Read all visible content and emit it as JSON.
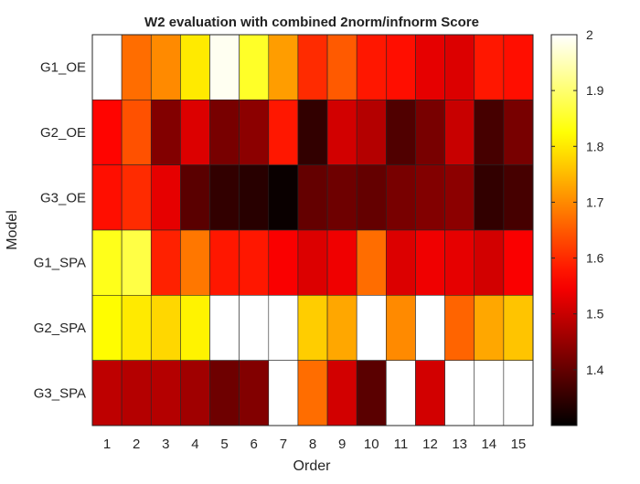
{
  "chart_data": {
    "type": "heatmap",
    "title": "W2 evaluation with combined 2norm/infnorm Score",
    "xlabel": "Order",
    "ylabel": "Model",
    "x": [
      "1",
      "2",
      "3",
      "4",
      "5",
      "6",
      "7",
      "8",
      "9",
      "10",
      "11",
      "12",
      "13",
      "14",
      "15"
    ],
    "y": [
      "G1_OE",
      "G2_OE",
      "G3_OE",
      "G1_SPA",
      "G2_SPA",
      "G3_SPA"
    ],
    "values": [
      [
        2.0,
        1.67,
        1.7,
        1.8,
        1.99,
        1.85,
        1.72,
        1.6,
        1.65,
        1.58,
        1.57,
        1.53,
        1.52,
        1.58,
        1.57
      ],
      [
        1.56,
        1.64,
        1.43,
        1.52,
        1.42,
        1.44,
        1.58,
        1.35,
        1.51,
        1.48,
        1.38,
        1.42,
        1.5,
        1.37,
        1.42
      ],
      [
        1.57,
        1.6,
        1.53,
        1.39,
        1.35,
        1.34,
        1.31,
        1.4,
        1.41,
        1.4,
        1.42,
        1.43,
        1.44,
        1.35,
        1.37
      ],
      [
        1.84,
        1.87,
        1.59,
        1.68,
        1.58,
        1.58,
        1.55,
        1.52,
        1.54,
        1.67,
        1.52,
        1.54,
        1.53,
        1.51,
        1.55
      ],
      [
        1.82,
        1.8,
        1.78,
        1.81,
        2.0,
        2.0,
        2.0,
        1.77,
        1.73,
        2.0,
        1.7,
        2.0,
        1.66,
        1.73,
        1.76
      ],
      [
        1.49,
        1.48,
        1.48,
        1.46,
        1.41,
        1.43,
        2.0,
        1.67,
        1.51,
        1.39,
        2.0,
        1.51,
        2.0,
        2.0,
        2.0
      ]
    ],
    "colormap": "hot",
    "clim": [
      1.3,
      2.0
    ],
    "colorbar_ticks": [
      "1.4",
      "1.5",
      "1.6",
      "1.7",
      "1.8",
      "1.9",
      "2"
    ],
    "colorbar_tick_values": [
      1.4,
      1.5,
      1.6,
      1.7,
      1.8,
      1.9,
      2.0
    ],
    "grid": true,
    "colorbar_position": "right"
  }
}
